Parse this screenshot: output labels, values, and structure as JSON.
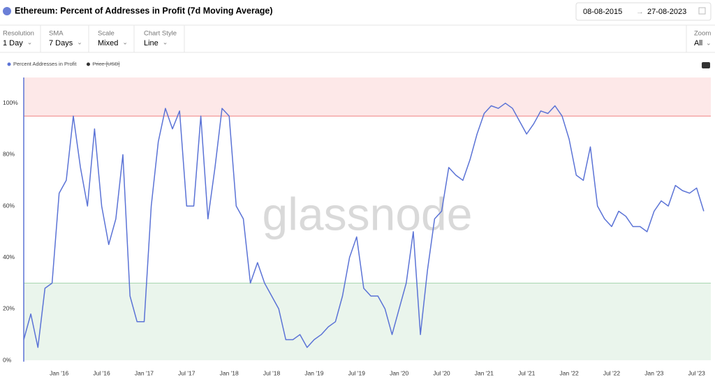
{
  "header": {
    "date_from": "08-08-2015",
    "date_to": "27-08-2023"
  },
  "controls": [
    {
      "label": "Resolution",
      "value": "1 Day"
    },
    {
      "label": "SMA",
      "value": "7 Days"
    },
    {
      "label": "Scale",
      "value": "Mixed"
    },
    {
      "label": "Chart Style",
      "value": "Line"
    }
  ],
  "zoom": {
    "label": "Zoom",
    "value": "All"
  },
  "chart_data": {
    "type": "line",
    "title": "Ethereum: Percent of Addresses in Profit (7d Moving Average)",
    "watermark": "glassnode",
    "x": [
      "2015-08",
      "2015-09",
      "2015-10",
      "2015-11",
      "2015-12",
      "2016-01",
      "2016-02",
      "2016-03",
      "2016-04",
      "2016-05",
      "2016-06",
      "2016-07",
      "2016-08",
      "2016-09",
      "2016-10",
      "2016-11",
      "2016-12",
      "2017-01",
      "2017-02",
      "2017-03",
      "2017-04",
      "2017-05",
      "2017-06",
      "2017-07",
      "2017-08",
      "2017-09",
      "2017-10",
      "2017-11",
      "2017-12",
      "2018-01",
      "2018-02",
      "2018-03",
      "2018-04",
      "2018-05",
      "2018-06",
      "2018-07",
      "2018-08",
      "2018-09",
      "2018-10",
      "2018-11",
      "2018-12",
      "2019-01",
      "2019-02",
      "2019-03",
      "2019-04",
      "2019-05",
      "2019-06",
      "2019-07",
      "2019-08",
      "2019-09",
      "2019-10",
      "2019-11",
      "2019-12",
      "2020-01",
      "2020-02",
      "2020-03",
      "2020-04",
      "2020-05",
      "2020-06",
      "2020-07",
      "2020-08",
      "2020-09",
      "2020-10",
      "2020-11",
      "2020-12",
      "2021-01",
      "2021-02",
      "2021-03",
      "2021-04",
      "2021-05",
      "2021-06",
      "2021-07",
      "2021-08",
      "2021-09",
      "2021-10",
      "2021-11",
      "2021-12",
      "2022-01",
      "2022-02",
      "2022-03",
      "2022-04",
      "2022-05",
      "2022-06",
      "2022-07",
      "2022-08",
      "2022-09",
      "2022-10",
      "2022-11",
      "2022-12",
      "2023-01",
      "2023-02",
      "2023-03",
      "2023-04",
      "2023-05",
      "2023-06",
      "2023-07",
      "2023-08"
    ],
    "series": [
      {
        "name": "Percent Addresses in Profit",
        "color": "#5b73d6",
        "values": [
          8,
          18,
          5,
          28,
          30,
          65,
          70,
          95,
          75,
          60,
          90,
          60,
          45,
          55,
          80,
          25,
          15,
          15,
          60,
          85,
          98,
          90,
          97,
          60,
          60,
          95,
          55,
          75,
          98,
          95,
          60,
          55,
          30,
          38,
          30,
          25,
          20,
          8,
          8,
          10,
          5,
          8,
          10,
          13,
          15,
          25,
          40,
          48,
          28,
          25,
          25,
          20,
          10,
          20,
          30,
          50,
          10,
          35,
          55,
          58,
          75,
          72,
          70,
          78,
          88,
          96,
          99,
          98,
          100,
          98,
          93,
          88,
          92,
          97,
          96,
          99,
          95,
          86,
          72,
          70,
          83,
          60,
          55,
          52,
          58,
          56,
          52,
          52,
          50,
          58,
          62,
          60,
          68,
          66,
          65,
          67,
          58
        ]
      }
    ],
    "hidden_series": [
      {
        "name": "Price [USD]",
        "color": "#333333"
      }
    ],
    "bands": [
      {
        "from": 95,
        "to": 110,
        "color": "#fde8e8",
        "edge": "#f08080"
      },
      {
        "from": 0,
        "to": 30,
        "color": "#eaf5ec",
        "edge": "#a8d5b0"
      }
    ],
    "xlim": [
      "2015-08",
      "2023-09"
    ],
    "xticks": [
      {
        "value": "2016-01",
        "label": "Jan '16"
      },
      {
        "value": "2016-07",
        "label": "Jul '16"
      },
      {
        "value": "2017-01",
        "label": "Jan '17"
      },
      {
        "value": "2017-07",
        "label": "Jul '17"
      },
      {
        "value": "2018-01",
        "label": "Jan '18"
      },
      {
        "value": "2018-07",
        "label": "Jul '18"
      },
      {
        "value": "2019-01",
        "label": "Jan '19"
      },
      {
        "value": "2019-07",
        "label": "Jul '19"
      },
      {
        "value": "2020-01",
        "label": "Jan '20"
      },
      {
        "value": "2020-07",
        "label": "Jul '20"
      },
      {
        "value": "2021-01",
        "label": "Jan '21"
      },
      {
        "value": "2021-07",
        "label": "Jul '21"
      },
      {
        "value": "2022-01",
        "label": "Jan '22"
      },
      {
        "value": "2022-07",
        "label": "Jul '22"
      },
      {
        "value": "2023-01",
        "label": "Jan '23"
      },
      {
        "value": "2023-07",
        "label": "Jul '23"
      }
    ],
    "ylim": [
      0,
      110
    ],
    "yticks": [
      {
        "value": 0,
        "label": "0%"
      },
      {
        "value": 20,
        "label": "20%"
      },
      {
        "value": 40,
        "label": "40%"
      },
      {
        "value": 60,
        "label": "60%"
      },
      {
        "value": 80,
        "label": "80%"
      },
      {
        "value": 100,
        "label": "100%"
      }
    ]
  }
}
